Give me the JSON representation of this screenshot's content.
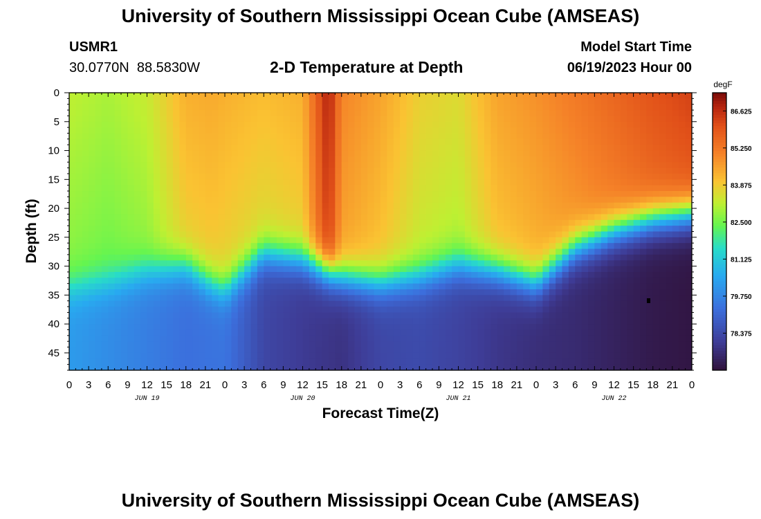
{
  "page": {
    "title": "University of Southern Mississippi Ocean Cube (AMSEAS)",
    "footer_title": "University of Southern Mississippi Ocean Cube (AMSEAS)",
    "station_id": "USMR1",
    "location": "30.0770N  88.5830W",
    "plot_title": "2-D Temperature at Depth",
    "start_label": "Model Start Time",
    "start_time": "06/19/2023 Hour 00"
  },
  "chart_data": {
    "type": "heatmap",
    "title": "2-D Temperature at Depth",
    "xlabel": "Forecast Time(Z)",
    "ylabel": "Depth (ft)",
    "x_range_hours": [
      0,
      96
    ],
    "x_tick_labels": [
      "0",
      "3",
      "6",
      "9",
      "12",
      "15",
      "18",
      "21",
      "0",
      "3",
      "6",
      "9",
      "12",
      "15",
      "18",
      "21",
      "0",
      "3",
      "6",
      "9",
      "12",
      "15",
      "18",
      "21",
      "0",
      "3",
      "6",
      "9",
      "12",
      "15",
      "18",
      "21",
      "0"
    ],
    "day_labels": [
      {
        "label": "JUN 19",
        "hour": 12
      },
      {
        "label": "JUN 20",
        "hour": 36
      },
      {
        "label": "JUN 21",
        "hour": 60
      },
      {
        "label": "JUN 22",
        "hour": 84
      }
    ],
    "y_range_ft": [
      0,
      48
    ],
    "y_ticks": [
      0,
      5,
      10,
      15,
      20,
      25,
      30,
      35,
      40,
      45
    ],
    "y_tick_labels": [
      "0",
      "5",
      "10",
      "15",
      "20",
      "25",
      "30",
      "35",
      "40",
      "45"
    ],
    "colorbar": {
      "units": "degF",
      "min": 77.0,
      "max": 87.3,
      "ticks": [
        86.625,
        85.25,
        83.875,
        82.5,
        81.125,
        79.75,
        78.375
      ],
      "tick_labels": [
        "86.625",
        "85.250",
        "83.875",
        "82.500",
        "81.125",
        "79.750",
        "78.375"
      ]
    },
    "thermocline_depth_ft": {
      "hours": [
        0,
        6,
        12,
        18,
        22,
        24,
        30,
        36,
        42,
        48,
        54,
        60,
        66,
        72,
        78,
        84,
        90,
        96
      ],
      "values": [
        34,
        33,
        31,
        30,
        33,
        34,
        28,
        29,
        32,
        33,
        32,
        30,
        31,
        33,
        27,
        24,
        22,
        21
      ]
    },
    "surface_temp_degF": {
      "hours": [
        0,
        6,
        12,
        18,
        22,
        24,
        30,
        36,
        40,
        42,
        48,
        54,
        60,
        66,
        72,
        78,
        84,
        90,
        96
      ],
      "values": [
        83.2,
        83.0,
        83.3,
        84.3,
        84.4,
        84.3,
        84.1,
        84.3,
        86.9,
        85.0,
        84.5,
        83.8,
        83.6,
        84.5,
        84.8,
        85.2,
        85.6,
        86.0,
        86.3
      ]
    },
    "deep_temp_degF": {
      "hours": [
        0,
        6,
        12,
        18,
        24,
        30,
        36,
        42,
        48,
        54,
        60,
        66,
        72,
        78,
        84,
        90,
        96
      ],
      "values": [
        80.2,
        79.9,
        79.6,
        79.3,
        79.4,
        78.3,
        78.0,
        77.8,
        78.3,
        78.4,
        78.2,
        77.9,
        77.7,
        77.6,
        77.4,
        77.2,
        77.1
      ]
    }
  }
}
